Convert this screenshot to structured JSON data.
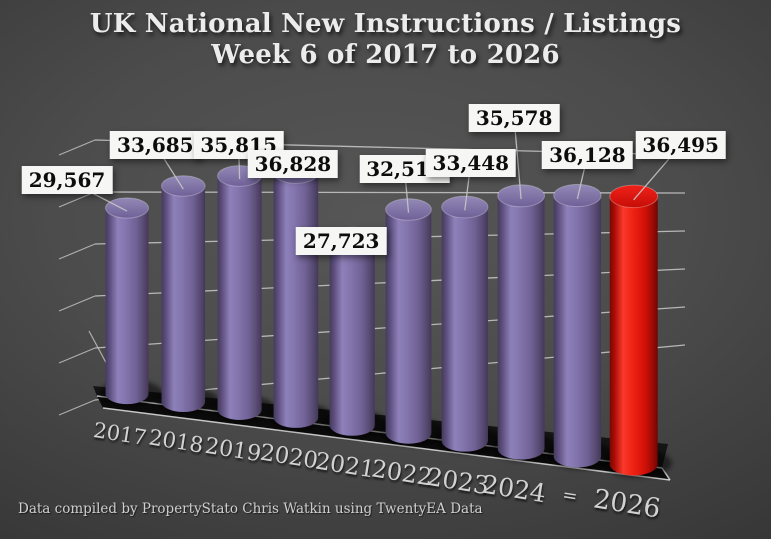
{
  "title": {
    "line1": "UK National New Instructions / Listings",
    "line2": "Week 6 of 2017 to 2026"
  },
  "footer": {
    "credit": "Data compiled by PropertyStato Chris Watkin using TwentyEA Data"
  },
  "chart_data": {
    "type": "bar",
    "style": "3d-cylinder",
    "title": "UK National New Instructions / Listings Week 6 of 2017 to 2026",
    "categories": [
      "2017",
      "2018",
      "2019",
      "2020",
      "2021",
      "2022",
      "2023",
      "2024",
      "=",
      "2026"
    ],
    "values": [
      29567,
      33685,
      35815,
      36828,
      27723,
      32517,
      33448,
      35578,
      36128,
      36495
    ],
    "value_labels": [
      "29,567",
      "33,685",
      "35,815",
      "36,828",
      "27,723",
      "32,517",
      "33,448",
      "35,578",
      "36,128",
      "36,495"
    ],
    "highlight_index": 9,
    "ylim": [
      0,
      40000
    ],
    "grid": "on",
    "legend": "none",
    "colors": {
      "bar": "#7e70a8",
      "highlight_bar": "#e81510",
      "label_box": "#f6f6f4",
      "label_text": "#0d0d0d",
      "grid_line": "#c9c9c9",
      "axis_text": "#d2d2d2",
      "floor": "#151515"
    }
  }
}
